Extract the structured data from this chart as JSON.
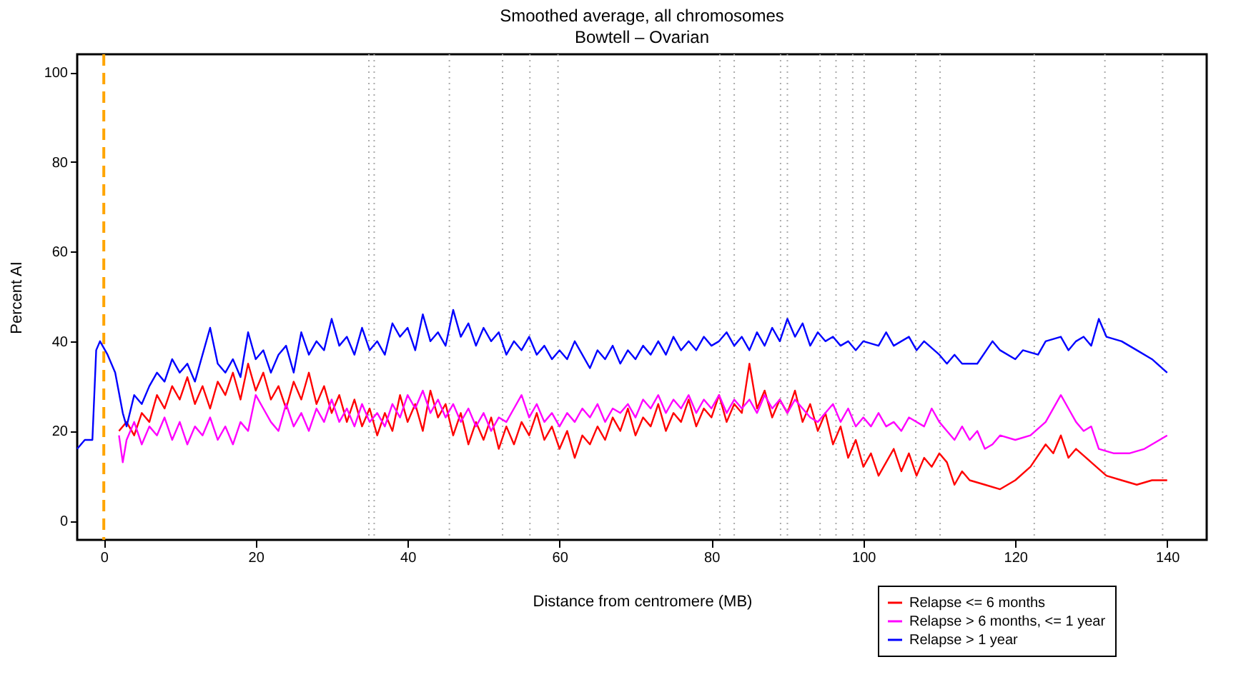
{
  "chart_data": {
    "type": "line",
    "title": "Smoothed average, all chromosomes",
    "subtitle": "Bowtell – Ovarian",
    "xlabel": "Distance from centromere (MB)",
    "ylabel": "Percent AI",
    "xlim": [
      -3.5,
      145.2
    ],
    "ylim": [
      -4.3,
      104
    ],
    "xticks": [
      0,
      20,
      40,
      60,
      80,
      100,
      120,
      140
    ],
    "yticks": [
      0,
      20,
      40,
      60,
      80,
      100
    ],
    "grid": false,
    "legend": "bottom right",
    "marker": "none",
    "line_style": "solid",
    "series": [
      {
        "name": "Relapse <= 6 months",
        "color": "#ff0000",
        "x": [
          2,
          3,
          4,
          5,
          6,
          7,
          8,
          9,
          10,
          11,
          12,
          13,
          14,
          15,
          16,
          17,
          18,
          19,
          20,
          21,
          22,
          23,
          24,
          25,
          26,
          27,
          28,
          29,
          30,
          31,
          32,
          33,
          34,
          35,
          36,
          37,
          38,
          39,
          40,
          41,
          42,
          43,
          44,
          45,
          46,
          47,
          48,
          49,
          50,
          51,
          52,
          53,
          54,
          55,
          56,
          57,
          58,
          59,
          60,
          61,
          62,
          63,
          64,
          65,
          66,
          67,
          68,
          69,
          70,
          71,
          72,
          73,
          74,
          75,
          76,
          77,
          78,
          79,
          80,
          81,
          82,
          83,
          84,
          85,
          86,
          87,
          88,
          89,
          90,
          91,
          92,
          93,
          94,
          95,
          96,
          97,
          98,
          99,
          100,
          101,
          102,
          103,
          104,
          105,
          106,
          107,
          108,
          109,
          110,
          111,
          112,
          113,
          114,
          116,
          118,
          120,
          122,
          124,
          125,
          126,
          127,
          128,
          130,
          132,
          134,
          136,
          138,
          140
        ],
        "values": [
          20,
          22,
          19,
          24,
          22,
          28,
          25,
          30,
          27,
          32,
          26,
          30,
          25,
          31,
          28,
          33,
          27,
          35,
          29,
          33,
          27,
          30,
          25,
          31,
          27,
          33,
          26,
          30,
          24,
          28,
          22,
          27,
          21,
          25,
          19,
          24,
          20,
          28,
          22,
          26,
          20,
          29,
          23,
          26,
          19,
          24,
          17,
          22,
          18,
          23,
          16,
          21,
          17,
          22,
          19,
          24,
          18,
          21,
          16,
          20,
          14,
          19,
          17,
          21,
          18,
          23,
          20,
          25,
          19,
          23,
          21,
          26,
          20,
          24,
          22,
          27,
          21,
          25,
          23,
          28,
          22,
          26,
          24,
          35,
          25,
          29,
          23,
          27,
          24,
          29,
          22,
          26,
          20,
          24,
          17,
          21,
          14,
          18,
          12,
          15,
          10,
          13,
          16,
          11,
          15,
          10,
          14,
          12,
          15,
          13,
          8,
          11,
          9,
          8,
          7,
          9,
          12,
          17,
          15,
          19,
          14,
          16,
          13,
          10,
          9,
          8,
          9,
          9
        ]
      },
      {
        "name": "Relapse > 6 months, <= 1 year",
        "color": "#ff00ff",
        "x": [
          2,
          2.5,
          3,
          4,
          5,
          6,
          7,
          8,
          9,
          10,
          11,
          12,
          13,
          14,
          15,
          16,
          17,
          18,
          19,
          20,
          21,
          22,
          23,
          24,
          25,
          26,
          27,
          28,
          29,
          30,
          31,
          32,
          33,
          34,
          35,
          36,
          37,
          38,
          39,
          40,
          41,
          42,
          43,
          44,
          45,
          46,
          47,
          48,
          49,
          50,
          51,
          52,
          53,
          54,
          55,
          56,
          57,
          58,
          59,
          60,
          61,
          62,
          63,
          64,
          65,
          66,
          67,
          68,
          69,
          70,
          71,
          72,
          73,
          74,
          75,
          76,
          77,
          78,
          79,
          80,
          81,
          82,
          83,
          84,
          85,
          86,
          87,
          88,
          89,
          90,
          91,
          92,
          93,
          94,
          95,
          96,
          97,
          98,
          99,
          100,
          101,
          102,
          103,
          104,
          105,
          106,
          108,
          109,
          110,
          111,
          112,
          113,
          114,
          115,
          116,
          117,
          118,
          120,
          122,
          124,
          126,
          127,
          128,
          129,
          130,
          131,
          133,
          135,
          137,
          140
        ],
        "values": [
          19,
          13,
          18,
          22,
          17,
          21,
          19,
          23,
          18,
          22,
          17,
          21,
          19,
          23,
          18,
          21,
          17,
          22,
          20,
          28,
          25,
          22,
          20,
          26,
          21,
          24,
          20,
          25,
          22,
          27,
          22,
          25,
          21,
          26,
          22,
          24,
          21,
          26,
          23,
          28,
          25,
          29,
          24,
          27,
          23,
          26,
          22,
          25,
          21,
          24,
          20,
          23,
          22,
          25,
          28,
          23,
          26,
          22,
          24,
          21,
          24,
          22,
          25,
          23,
          26,
          22,
          25,
          24,
          26,
          23,
          27,
          25,
          28,
          24,
          27,
          25,
          28,
          24,
          27,
          25,
          28,
          24,
          27,
          25,
          27,
          24,
          28,
          25,
          27,
          24,
          27,
          25,
          23,
          22,
          24,
          26,
          22,
          25,
          21,
          23,
          21,
          24,
          21,
          22,
          20,
          23,
          21,
          25,
          22,
          20,
          18,
          21,
          18,
          20,
          16,
          17,
          19,
          18,
          19,
          22,
          28,
          25,
          22,
          20,
          21,
          16,
          15,
          15,
          16,
          19
        ]
      },
      {
        "name": "Relapse > 1 year",
        "color": "#0000ff",
        "x": [
          -3.5,
          -2.5,
          -1.5,
          -1,
          -0.5,
          0.5,
          1.5,
          2.5,
          3,
          4,
          5,
          6,
          7,
          8,
          9,
          10,
          11,
          12,
          13,
          14,
          15,
          16,
          17,
          18,
          19,
          20,
          21,
          22,
          23,
          24,
          25,
          26,
          27,
          28,
          29,
          30,
          31,
          32,
          33,
          34,
          35,
          36,
          37,
          38,
          39,
          40,
          41,
          42,
          43,
          44,
          45,
          46,
          47,
          48,
          49,
          50,
          51,
          52,
          53,
          54,
          55,
          56,
          57,
          58,
          59,
          60,
          61,
          62,
          63,
          64,
          65,
          66,
          67,
          68,
          69,
          70,
          71,
          72,
          73,
          74,
          75,
          76,
          77,
          78,
          79,
          80,
          81,
          82,
          83,
          84,
          85,
          86,
          87,
          88,
          89,
          90,
          91,
          92,
          93,
          94,
          95,
          96,
          97,
          98,
          99,
          100,
          102,
          103,
          104,
          106,
          107,
          108,
          110,
          111,
          112,
          113,
          115,
          117,
          118,
          120,
          121,
          123,
          124,
          126,
          127,
          128,
          129,
          130,
          131,
          132,
          134,
          136,
          138,
          140
        ],
        "values": [
          16,
          18,
          18,
          38,
          40,
          37,
          33,
          24,
          21,
          28,
          26,
          30,
          33,
          31,
          36,
          33,
          35,
          31,
          37,
          43,
          35,
          33,
          36,
          32,
          42,
          36,
          38,
          33,
          37,
          39,
          33,
          42,
          37,
          40,
          38,
          45,
          39,
          41,
          37,
          43,
          38,
          40,
          37,
          44,
          41,
          43,
          38,
          46,
          40,
          42,
          39,
          47,
          41,
          44,
          39,
          43,
          40,
          42,
          37,
          40,
          38,
          41,
          37,
          39,
          36,
          38,
          36,
          40,
          37,
          34,
          38,
          36,
          39,
          35,
          38,
          36,
          39,
          37,
          40,
          37,
          41,
          38,
          40,
          38,
          41,
          39,
          40,
          42,
          39,
          41,
          38,
          42,
          39,
          43,
          40,
          45,
          41,
          44,
          39,
          42,
          40,
          41,
          39,
          40,
          38,
          40,
          39,
          42,
          39,
          41,
          38,
          40,
          37,
          35,
          37,
          35,
          35,
          40,
          38,
          36,
          38,
          37,
          40,
          41,
          38,
          40,
          41,
          39,
          45,
          41,
          40,
          38,
          36,
          33
        ]
      }
    ],
    "ref_lines": [
      {
        "axis": "x",
        "value": 0,
        "color": "#ffa500",
        "line_style": "dashed"
      },
      {
        "axis": "x",
        "value": 34.9,
        "color": "#aaaaaa",
        "line_style": "dotted"
      },
      {
        "axis": "x",
        "value": 35.6,
        "color": "#aaaaaa",
        "line_style": "dotted"
      },
      {
        "axis": "x",
        "value": 45.5,
        "color": "#aaaaaa",
        "line_style": "dotted"
      },
      {
        "axis": "x",
        "value": 52.5,
        "color": "#aaaaaa",
        "line_style": "dotted"
      },
      {
        "axis": "x",
        "value": 56.1,
        "color": "#aaaaaa",
        "line_style": "dotted"
      },
      {
        "axis": "x",
        "value": 59.8,
        "color": "#aaaaaa",
        "line_style": "dotted"
      },
      {
        "axis": "x",
        "value": 81.1,
        "color": "#aaaaaa",
        "line_style": "dotted"
      },
      {
        "axis": "x",
        "value": 83.0,
        "color": "#aaaaaa",
        "line_style": "dotted"
      },
      {
        "axis": "x",
        "value": 89.1,
        "color": "#aaaaaa",
        "line_style": "dotted"
      },
      {
        "axis": "x",
        "value": 90.0,
        "color": "#aaaaaa",
        "line_style": "dotted"
      },
      {
        "axis": "x",
        "value": 94.3,
        "color": "#aaaaaa",
        "line_style": "dotted"
      },
      {
        "axis": "x",
        "value": 96.4,
        "color": "#aaaaaa",
        "line_style": "dotted"
      },
      {
        "axis": "x",
        "value": 98.6,
        "color": "#aaaaaa",
        "line_style": "dotted"
      },
      {
        "axis": "x",
        "value": 100.1,
        "color": "#aaaaaa",
        "line_style": "dotted"
      },
      {
        "axis": "x",
        "value": 106.9,
        "color": "#aaaaaa",
        "line_style": "dotted"
      },
      {
        "axis": "x",
        "value": 110.1,
        "color": "#aaaaaa",
        "line_style": "dotted"
      },
      {
        "axis": "x",
        "value": 122.5,
        "color": "#aaaaaa",
        "line_style": "dotted"
      },
      {
        "axis": "x",
        "value": 131.8,
        "color": "#aaaaaa",
        "line_style": "dotted"
      },
      {
        "axis": "x",
        "value": 139.4,
        "color": "#aaaaaa",
        "line_style": "dotted"
      }
    ]
  }
}
